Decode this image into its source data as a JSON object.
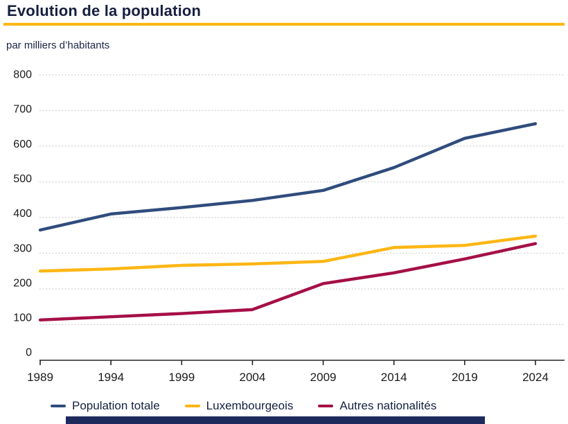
{
  "header": {
    "title": "Evolution de la population",
    "subtitle": "par milliers d’habitants"
  },
  "accent_colors": {
    "title_rule": "#FDB614",
    "footer_bar": "#1D2B5C",
    "text_dark": "#14203E",
    "axis": "#1a1a1a",
    "gridline": "#CFCFCF"
  },
  "chart_data": {
    "type": "line",
    "title": "Evolution de la population",
    "units_label": "par milliers d’habitants",
    "x": [
      1989,
      1994,
      1999,
      2004,
      2009,
      2014,
      2019,
      2024
    ],
    "series": [
      {
        "name": "Population totale",
        "color": "#304C7D",
        "values": [
          365,
          410,
          428,
          448,
          476,
          540,
          622,
          663
        ]
      },
      {
        "name": "Luxembourgeois",
        "color": "#FDB614",
        "values": [
          250,
          256,
          266,
          270,
          277,
          316,
          322,
          348
        ]
      },
      {
        "name": "Autres nationalités",
        "color": "#A50F47",
        "values": [
          113,
          122,
          131,
          142,
          215,
          245,
          284,
          327
        ]
      }
    ],
    "ylim": [
      0,
      800
    ],
    "yticks": [
      0,
      100,
      200,
      300,
      400,
      500,
      600,
      700,
      800
    ],
    "grid": "horizontal-dotted",
    "legend_position": "bottom"
  }
}
